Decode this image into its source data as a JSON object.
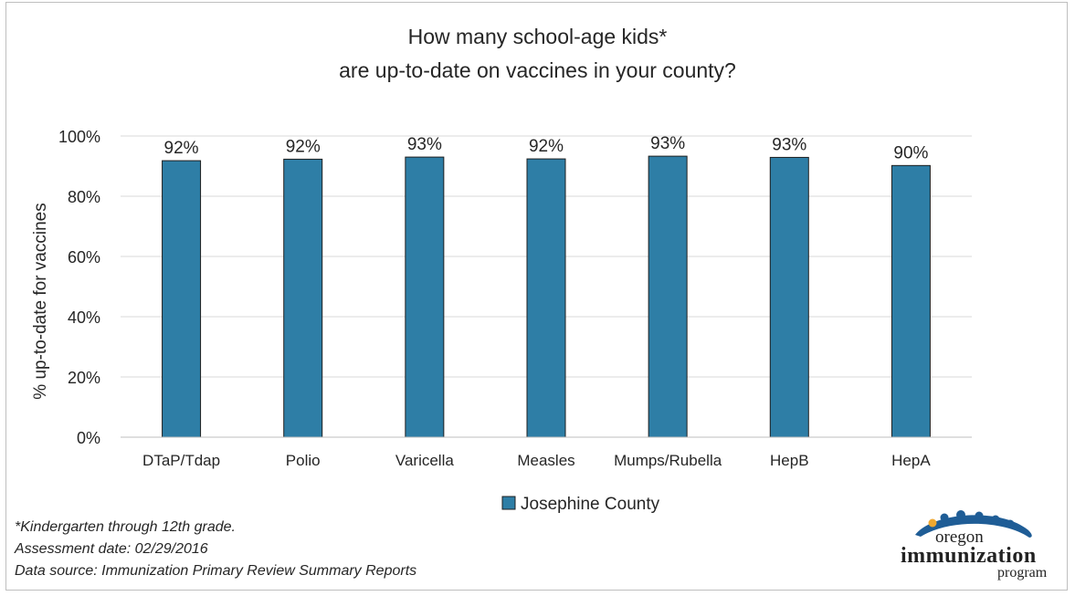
{
  "chart_data": {
    "type": "bar",
    "title": [
      "How many school-age kids*",
      "are up-to-date on vaccines in your county?"
    ],
    "ylabel": "% up-to-date for vaccines",
    "categories": [
      "DTaP/Tdap",
      "Polio",
      "Varicella",
      "Measles",
      "Mumps/Rubella",
      "HepB",
      "HepA"
    ],
    "series": [
      {
        "name": "Josephine County",
        "values": [
          91.8,
          92.3,
          93.0,
          92.4,
          93.3,
          92.9,
          90.2
        ],
        "labels": [
          "92%",
          "92%",
          "93%",
          "92%",
          "93%",
          "93%",
          "90%"
        ]
      }
    ],
    "ylim": [
      0,
      100
    ],
    "yticks": [
      0,
      20,
      40,
      60,
      80,
      100
    ],
    "ytick_labels": [
      "0%",
      "20%",
      "40%",
      "60%",
      "80%",
      "100%"
    ],
    "grid": true,
    "legend_position": "bottom",
    "bar_color": "#2e7ea6"
  },
  "notes": {
    "line1": "*Kindergarten through 12th grade.",
    "line2": "Assessment date: 02/29/2016",
    "line3": "Data source: Immunization Primary Review Summary Reports"
  },
  "logo": {
    "top": "oregon",
    "middle": "immunization",
    "bottom": "program"
  }
}
